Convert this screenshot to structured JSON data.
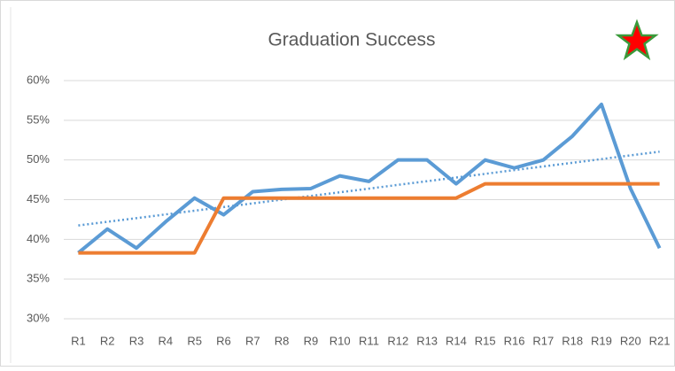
{
  "chart_data": {
    "type": "line",
    "title": "Graduation Success",
    "categories": [
      "R1",
      "R2",
      "R3",
      "R4",
      "R5",
      "R6",
      "R7",
      "R8",
      "R9",
      "R10",
      "R11",
      "R12",
      "R13",
      "R14",
      "R15",
      "R16",
      "R17",
      "R18",
      "R19",
      "R20",
      "R21"
    ],
    "series": [
      {
        "color": "#5b9bd5",
        "trendline": true,
        "values": [
          38.3,
          41.3,
          38.9,
          42.2,
          45.2,
          43.1,
          46.0,
          46.3,
          46.4,
          48.0,
          47.3,
          50.0,
          50.0,
          47.0,
          50.0,
          49.0,
          50.0,
          53.0,
          57.0,
          46.4,
          38.9
        ]
      },
      {
        "color": "#ed7d31",
        "values": [
          38.3,
          38.3,
          38.3,
          38.3,
          38.3,
          45.2,
          45.2,
          45.2,
          45.2,
          45.2,
          45.2,
          45.2,
          45.2,
          45.2,
          47.0,
          47.0,
          47.0,
          47.0,
          47.0,
          47.0,
          47.0
        ]
      }
    ],
    "ylim": [
      30,
      60
    ],
    "yticks": [
      {
        "value": 30,
        "label": "30%"
      },
      {
        "value": 35,
        "label": "35%"
      },
      {
        "value": 40,
        "label": "40%"
      },
      {
        "value": 45,
        "label": "45%"
      },
      {
        "value": 50,
        "label": "50%"
      },
      {
        "value": 55,
        "label": "55%"
      },
      {
        "value": 60,
        "label": "60%"
      }
    ],
    "grid": true
  }
}
